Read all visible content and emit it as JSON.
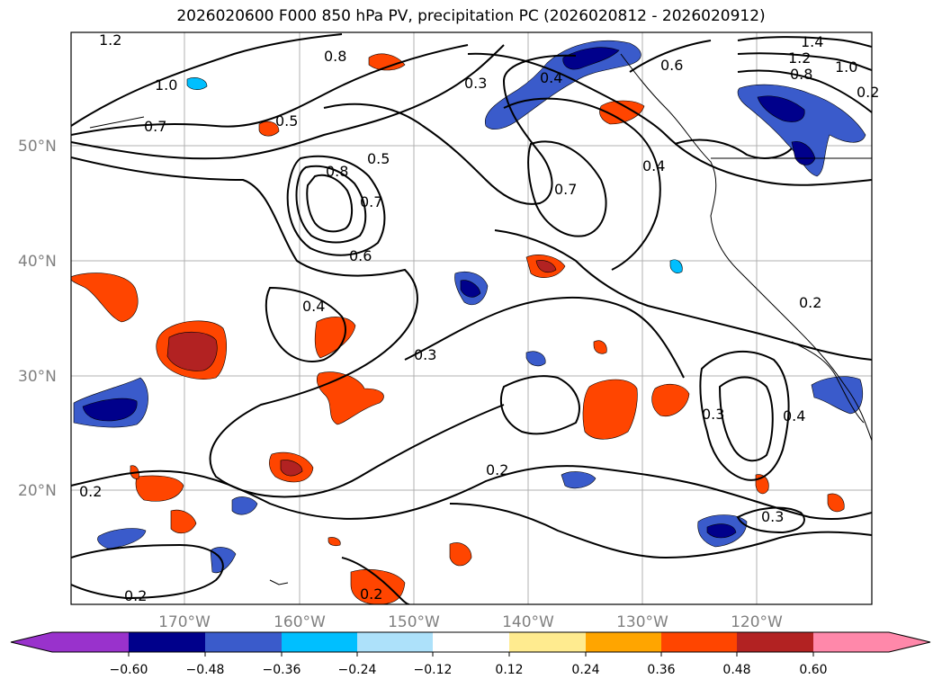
{
  "title": "2026020600 F000 850 hPa PV, precipitation PC (2026020812 - 2026020912)",
  "colors": {
    "background": "#ffffff",
    "grid": "#b0b0b0",
    "axis_labels": "#808080",
    "contour": "#000000"
  },
  "map": {
    "lat_labels": [
      "50°N",
      "40°N",
      "30°N",
      "20°N"
    ],
    "lon_labels": [
      "170°W",
      "160°W",
      "150°W",
      "140°W",
      "130°W",
      "120°W"
    ],
    "pv_contour_labels": [
      "1.2",
      "0.8",
      "1.0",
      "0.7",
      "0.5",
      "0.8",
      "0.5",
      "0.7",
      "0.6",
      "0.3",
      "0.4",
      "0.4",
      "0.3",
      "0.2",
      "0.2",
      "0.2",
      "0.3",
      "0.4",
      "0.3",
      "0.2",
      "1.4",
      "1.2",
      "1.0",
      "0.8",
      "0.6",
      "0.4",
      "0.7",
      "0.2",
      "0.2"
    ],
    "precip_anomaly_areas": [
      {
        "sign": "positive",
        "region": "subtropical Pacific near 32N 168W"
      },
      {
        "sign": "negative",
        "region": "near 27N 175W"
      },
      {
        "sign": "negative",
        "region": "Gulf of Alaska coast"
      },
      {
        "sign": "negative",
        "region": "Pacific Northwest interior"
      },
      {
        "sign": "negative",
        "region": "Baja California"
      },
      {
        "sign": "negative",
        "region": "near 17N 122W"
      }
    ]
  },
  "colorbar": {
    "tick_labels": [
      "−0.60",
      "−0.48",
      "−0.36",
      "−0.24",
      "−0.12",
      "0.12",
      "0.24",
      "0.36",
      "0.48",
      "0.60"
    ],
    "colors": [
      "#9932CC",
      "#00008B",
      "#3A5BCB",
      "#00BFFF",
      "#ADE1FA",
      "#FFFFFF",
      "#FFEB8F",
      "#FFA500",
      "#FF4500",
      "#B22222",
      "#FF88AA"
    ]
  }
}
